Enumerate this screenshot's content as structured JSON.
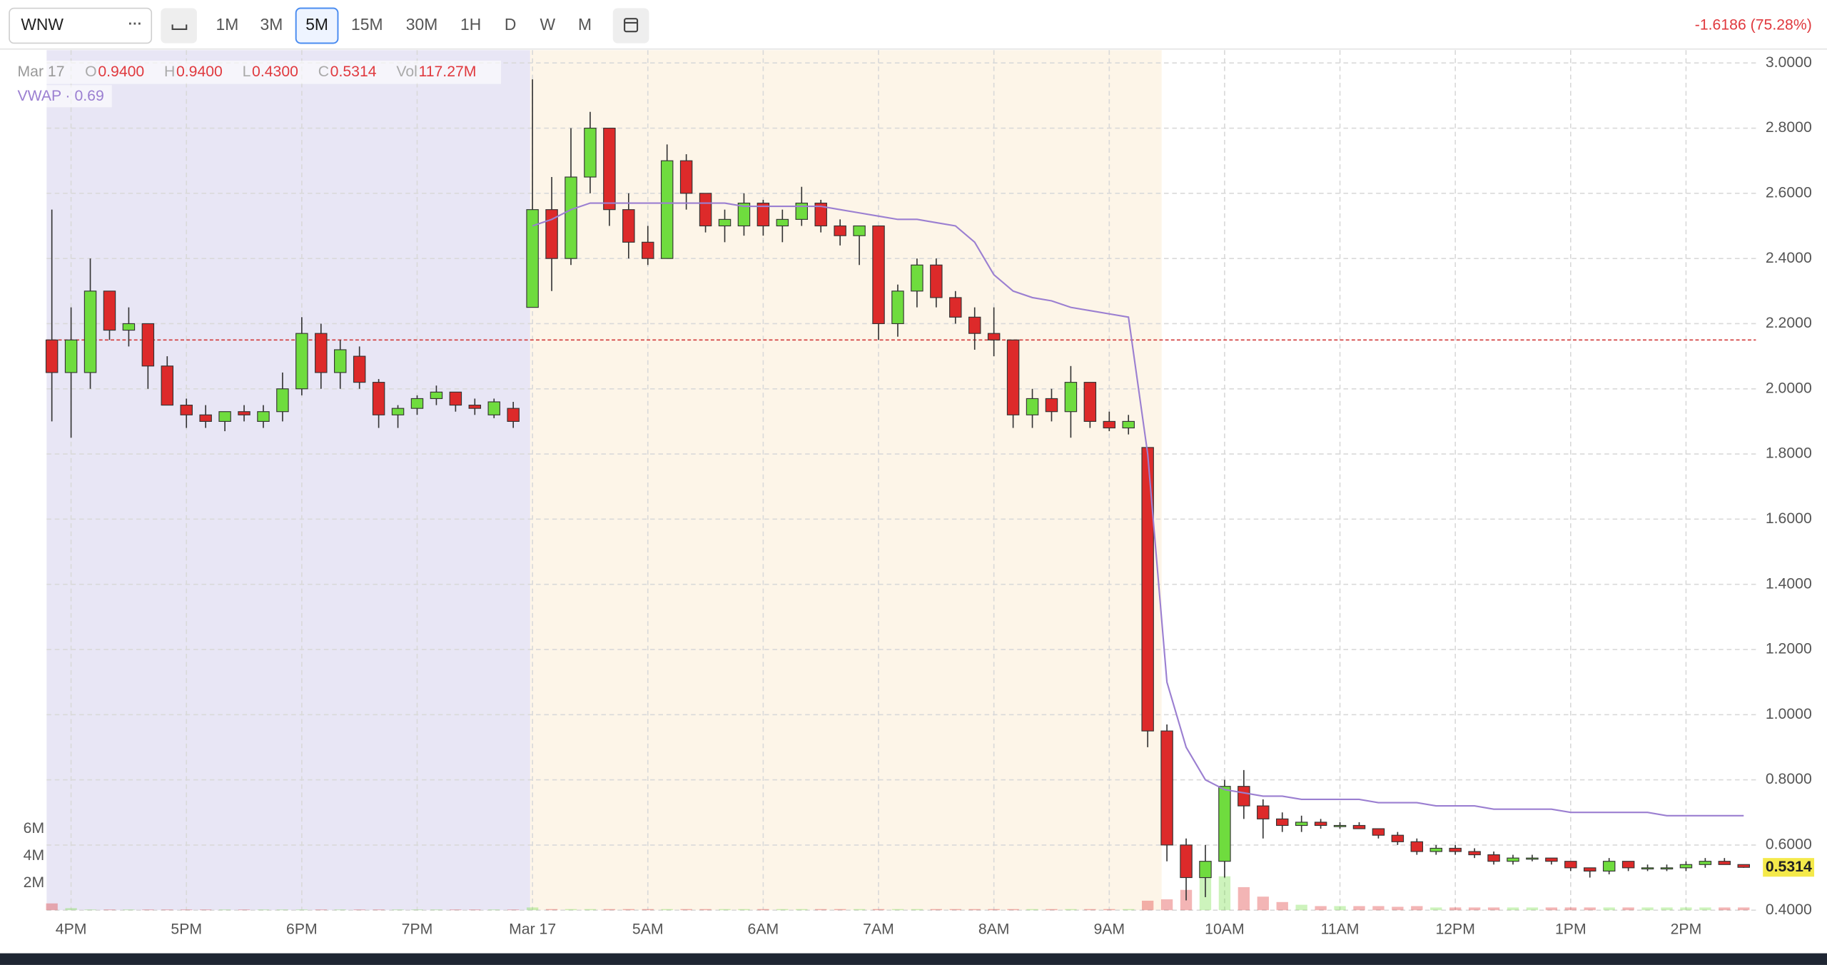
{
  "toolbar": {
    "symbol": "WNW",
    "intervals": [
      "1M",
      "3M",
      "5M",
      "15M",
      "30M",
      "1H",
      "D",
      "W",
      "M"
    ],
    "selected_interval": 2,
    "change": "-1.6186 (75.28%)"
  },
  "legend": {
    "date": "Mar 17",
    "items": [
      {
        "key": "O",
        "value": "0.9400"
      },
      {
        "key": "H",
        "value": "0.9400"
      },
      {
        "key": "L",
        "value": "0.4300"
      },
      {
        "key": "C",
        "value": "0.5314"
      },
      {
        "key": "Vol",
        "value": "117.27M"
      }
    ],
    "vwap_name": "VWAP",
    "vwap_value": "0.69"
  },
  "chart_data": {
    "type": "candlestick",
    "categories": [
      null,
      "4PM",
      null,
      null,
      null,
      null,
      null,
      "5PM",
      null,
      null,
      null,
      null,
      null,
      "6PM",
      null,
      null,
      null,
      null,
      null,
      "7PM",
      null,
      null,
      null,
      null,
      null,
      "Mar 17",
      null,
      null,
      null,
      null,
      null,
      "5AM",
      null,
      null,
      null,
      null,
      null,
      "6AM",
      null,
      null,
      null,
      null,
      null,
      "7AM",
      null,
      null,
      null,
      null,
      null,
      "8AM",
      null,
      null,
      null,
      null,
      null,
      "9AM",
      null,
      null,
      null,
      null,
      null,
      "10AM",
      null,
      null,
      null,
      null,
      null,
      "11AM",
      null,
      null,
      null,
      null,
      null,
      "12PM",
      null,
      null,
      null,
      null,
      null,
      "1PM",
      null,
      null,
      null,
      null,
      null,
      "2PM",
      null,
      null,
      null
    ],
    "open": [
      2.15,
      2.05,
      2.05,
      2.3,
      2.18,
      2.2,
      2.07,
      1.95,
      1.92,
      1.9,
      1.93,
      1.9,
      1.93,
      2.0,
      2.17,
      2.05,
      2.1,
      2.02,
      1.92,
      1.94,
      1.97,
      1.99,
      1.95,
      1.92,
      1.94,
      2.25,
      2.55,
      2.4,
      2.65,
      2.8,
      2.55,
      2.45,
      2.4,
      2.7,
      2.6,
      2.5,
      2.5,
      2.57,
      2.5,
      2.52,
      2.57,
      2.5,
      2.47,
      2.5,
      2.2,
      2.3,
      2.38,
      2.28,
      2.22,
      2.17,
      2.15,
      1.92,
      1.97,
      1.93,
      2.02,
      1.9,
      1.88,
      1.82,
      0.95,
      0.6,
      0.5,
      0.55,
      0.78,
      0.72,
      0.68,
      0.66,
      0.67,
      0.66,
      0.66,
      0.65,
      0.63,
      0.61,
      0.58,
      0.59,
      0.58,
      0.57,
      0.55,
      0.56,
      0.56,
      0.55,
      0.53,
      0.52,
      0.55,
      0.53,
      0.53,
      0.53,
      0.54,
      0.55,
      0.54
    ],
    "high": [
      2.55,
      2.25,
      2.4,
      2.3,
      2.25,
      2.2,
      2.1,
      1.97,
      1.95,
      1.93,
      1.95,
      1.95,
      2.05,
      2.22,
      2.2,
      2.15,
      2.13,
      2.03,
      1.95,
      1.98,
      2.01,
      1.99,
      1.97,
      1.97,
      1.96,
      2.95,
      2.65,
      2.8,
      2.85,
      2.8,
      2.6,
      2.5,
      2.75,
      2.72,
      2.6,
      2.55,
      2.6,
      2.58,
      2.55,
      2.62,
      2.58,
      2.52,
      2.5,
      2.5,
      2.32,
      2.4,
      2.4,
      2.3,
      2.25,
      2.25,
      2.15,
      2.0,
      2.0,
      2.07,
      2.02,
      1.93,
      1.92,
      1.82,
      0.97,
      0.62,
      0.6,
      0.8,
      0.83,
      0.74,
      0.7,
      0.69,
      0.68,
      0.67,
      0.67,
      0.65,
      0.64,
      0.62,
      0.6,
      0.6,
      0.59,
      0.58,
      0.57,
      0.57,
      0.56,
      0.55,
      0.53,
      0.56,
      0.55,
      0.54,
      0.54,
      0.55,
      0.56,
      0.56,
      0.54
    ],
    "low": [
      1.9,
      1.85,
      2.0,
      2.15,
      2.13,
      2.0,
      1.95,
      1.88,
      1.88,
      1.87,
      1.9,
      1.88,
      1.9,
      1.98,
      2.0,
      2.0,
      2.0,
      1.88,
      1.88,
      1.92,
      1.95,
      1.93,
      1.92,
      1.91,
      1.88,
      2.25,
      2.3,
      2.38,
      2.6,
      2.5,
      2.4,
      2.38,
      2.4,
      2.55,
      2.48,
      2.45,
      2.47,
      2.47,
      2.45,
      2.5,
      2.48,
      2.44,
      2.38,
      2.15,
      2.16,
      2.25,
      2.25,
      2.2,
      2.12,
      2.1,
      1.88,
      1.88,
      1.9,
      1.85,
      1.88,
      1.87,
      1.86,
      0.9,
      0.55,
      0.43,
      0.44,
      0.5,
      0.68,
      0.62,
      0.64,
      0.64,
      0.65,
      0.65,
      0.65,
      0.62,
      0.6,
      0.57,
      0.57,
      0.57,
      0.56,
      0.54,
      0.54,
      0.55,
      0.54,
      0.52,
      0.5,
      0.51,
      0.52,
      0.52,
      0.52,
      0.52,
      0.53,
      0.54,
      0.53
    ],
    "close": [
      2.05,
      2.15,
      2.3,
      2.18,
      2.2,
      2.07,
      1.95,
      1.92,
      1.9,
      1.93,
      1.92,
      1.93,
      2.0,
      2.17,
      2.05,
      2.12,
      2.02,
      1.92,
      1.94,
      1.97,
      1.99,
      1.95,
      1.94,
      1.96,
      1.9,
      2.55,
      2.4,
      2.65,
      2.8,
      2.55,
      2.45,
      2.4,
      2.7,
      2.6,
      2.5,
      2.52,
      2.57,
      2.5,
      2.52,
      2.57,
      2.5,
      2.47,
      2.5,
      2.2,
      2.3,
      2.38,
      2.28,
      2.22,
      2.17,
      2.15,
      1.92,
      1.97,
      1.93,
      2.02,
      1.9,
      1.88,
      1.9,
      0.95,
      0.6,
      0.5,
      0.55,
      0.78,
      0.72,
      0.68,
      0.66,
      0.67,
      0.66,
      0.66,
      0.65,
      0.63,
      0.61,
      0.58,
      0.59,
      0.58,
      0.57,
      0.55,
      0.56,
      0.56,
      0.55,
      0.53,
      0.52,
      0.55,
      0.53,
      0.53,
      0.53,
      0.54,
      0.55,
      0.54,
      0.5314
    ],
    "volume": [
      500000,
      150000,
      50000,
      50000,
      50000,
      50000,
      50000,
      50000,
      50000,
      50000,
      50000,
      50000,
      50000,
      50000,
      50000,
      50000,
      50000,
      50000,
      50000,
      50000,
      50000,
      50000,
      50000,
      50000,
      50000,
      200000,
      80000,
      80000,
      80000,
      80000,
      80000,
      80000,
      80000,
      80000,
      80000,
      80000,
      80000,
      80000,
      80000,
      80000,
      80000,
      80000,
      80000,
      80000,
      80000,
      80000,
      80000,
      80000,
      80000,
      80000,
      80000,
      80000,
      80000,
      80000,
      80000,
      80000,
      80000,
      700000,
      800000,
      1500000,
      3000000,
      2500000,
      1700000,
      1000000,
      600000,
      400000,
      300000,
      300000,
      300000,
      300000,
      250000,
      300000,
      200000,
      200000,
      200000,
      200000,
      200000,
      200000,
      200000,
      200000,
      200000,
      200000,
      200000,
      200000,
      200000,
      200000,
      200000,
      200000,
      200000
    ],
    "vwap": {
      "name": "VWAP",
      "color": "#9b7fd1",
      "values": [
        null,
        null,
        null,
        null,
        null,
        null,
        null,
        null,
        null,
        null,
        null,
        null,
        null,
        null,
        null,
        null,
        null,
        null,
        null,
        null,
        null,
        null,
        null,
        null,
        null,
        2.5,
        2.52,
        2.55,
        2.57,
        2.57,
        2.57,
        2.57,
        2.57,
        2.57,
        2.57,
        2.57,
        2.56,
        2.56,
        2.56,
        2.56,
        2.56,
        2.55,
        2.54,
        2.53,
        2.52,
        2.52,
        2.51,
        2.5,
        2.45,
        2.35,
        2.3,
        2.28,
        2.27,
        2.25,
        2.24,
        2.23,
        2.22,
        1.8,
        1.1,
        0.9,
        0.8,
        0.77,
        0.76,
        0.75,
        0.75,
        0.74,
        0.74,
        0.74,
        0.74,
        0.73,
        0.73,
        0.73,
        0.72,
        0.72,
        0.72,
        0.71,
        0.71,
        0.71,
        0.71,
        0.7,
        0.7,
        0.7,
        0.7,
        0.7,
        0.69,
        0.69,
        0.69,
        0.69,
        0.69
      ]
    },
    "ylim": [
      0.4,
      3.0
    ],
    "yticks": [
      {
        "value": 0.4,
        "label": "0.4000"
      },
      {
        "value": 0.6,
        "label": "0.6000"
      },
      {
        "value": 0.8,
        "label": "0.8000"
      },
      {
        "value": 1.0,
        "label": "1.0000"
      },
      {
        "value": 1.2,
        "label": "1.2000"
      },
      {
        "value": 1.4,
        "label": "1.4000"
      },
      {
        "value": 1.6,
        "label": "1.6000"
      },
      {
        "value": 1.8,
        "label": "1.8000"
      },
      {
        "value": 2.0,
        "label": "2.0000"
      },
      {
        "value": 2.2,
        "label": "2.2000"
      },
      {
        "value": 2.4,
        "label": "2.4000"
      },
      {
        "value": 2.6,
        "label": "2.6000"
      },
      {
        "value": 2.8,
        "label": "2.8000"
      },
      {
        "value": 3.0,
        "label": "3.0000"
      }
    ],
    "volume_lim": [
      0,
      8000000
    ],
    "volume_ticks": [
      {
        "value": 2000000,
        "label": "2M"
      },
      {
        "value": 4000000,
        "label": "4M"
      },
      {
        "value": 6000000,
        "label": "6M"
      }
    ],
    "reference_line": 2.15,
    "last_price": {
      "value": 0.5314,
      "label": "0.5314"
    },
    "up_color": "#6fdc3e",
    "down_color": "#dd2a2a",
    "grid": true
  }
}
